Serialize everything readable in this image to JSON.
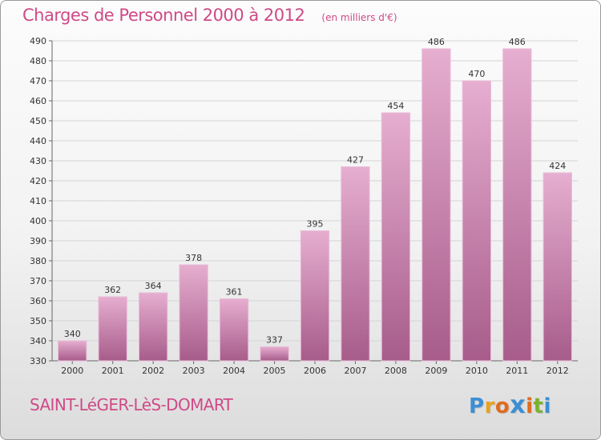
{
  "header": {
    "title": "Charges de Personnel 2000 à 2012",
    "subtitle": "(en milliers d'€)"
  },
  "footer": {
    "commune": "SAINT-LéGER-LèS-DOMART",
    "logo": {
      "text": "Proxiti",
      "letters": [
        "P",
        "r",
        "o",
        "x",
        "i",
        "t",
        "i"
      ],
      "colors": [
        "#3b8fd4",
        "#e8a21c",
        "#e06b1e",
        "#3b8fd4",
        "#e06b1e",
        "#7ab22e",
        "#3b8fd4"
      ]
    }
  },
  "colors": {
    "bar_light": "#e6aed0",
    "bar_dark": "#a75c8a",
    "title": "#cf4a87"
  },
  "chart_data": {
    "type": "bar",
    "categories": [
      "2000",
      "2001",
      "2002",
      "2003",
      "2004",
      "2005",
      "2006",
      "2007",
      "2008",
      "2009",
      "2010",
      "2011",
      "2012"
    ],
    "values": [
      340,
      362,
      364,
      378,
      361,
      337,
      395,
      427,
      454,
      486,
      470,
      486,
      424
    ],
    "title": "Charges de Personnel 2000 à 2012",
    "subtitle": "(en milliers d'€)",
    "ylim": [
      330,
      490
    ],
    "yticks": [
      330,
      340,
      350,
      360,
      370,
      380,
      390,
      400,
      410,
      420,
      430,
      440,
      450,
      460,
      470,
      480,
      490
    ],
    "grid": true,
    "legend": false
  }
}
